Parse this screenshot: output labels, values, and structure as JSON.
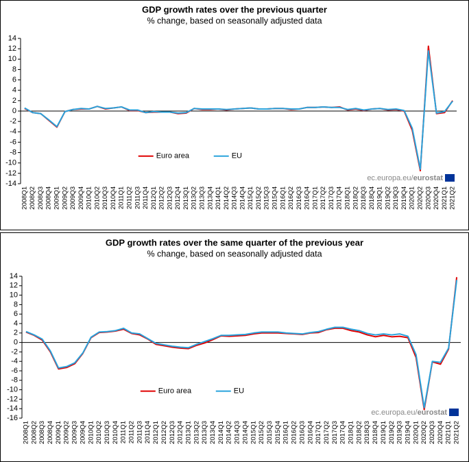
{
  "chart_data": [
    {
      "type": "line",
      "title": "GDP growth rates over the previous quarter",
      "subtitle": "% change, based on seasonally adjusted data",
      "source": [
        "ec.europa.eu/",
        "eurostat"
      ],
      "categories": [
        "2008Q1",
        "2008Q2",
        "2008Q3",
        "2008Q4",
        "2009Q1",
        "2009Q2",
        "2009Q3",
        "2009Q4",
        "2010Q1",
        "2010Q2",
        "2010Q3",
        "2010Q4",
        "2011Q1",
        "2011Q2",
        "2011Q3",
        "2011Q4",
        "2012Q1",
        "2012Q2",
        "2012Q3",
        "2012Q4",
        "2013Q1",
        "2013Q2",
        "2013Q3",
        "2013Q4",
        "2014Q1",
        "2014Q2",
        "2014Q3",
        "2014Q4",
        "2015Q1",
        "2015Q2",
        "2015Q3",
        "2015Q4",
        "2016Q1",
        "2016Q2",
        "2016Q3",
        "2016Q4",
        "2017Q1",
        "2017Q2",
        "2017Q3",
        "2017Q4",
        "2018Q1",
        "2018Q2",
        "2018Q3",
        "2018Q4",
        "2019Q1",
        "2019Q2",
        "2019Q3",
        "2019Q4",
        "2020Q1",
        "2020Q2",
        "2020Q3",
        "2020Q4",
        "2021Q1",
        "2021Q2"
      ],
      "series": [
        {
          "name": "Euro area",
          "color": "#e00000",
          "values": [
            0.5,
            -0.3,
            -0.5,
            -1.8,
            -3.1,
            -0.1,
            0.3,
            0.4,
            0.4,
            0.9,
            0.4,
            0.6,
            0.8,
            0.1,
            0.1,
            -0.3,
            -0.2,
            -0.2,
            -0.2,
            -0.5,
            -0.4,
            0.5,
            0.3,
            0.3,
            0.4,
            0.2,
            0.4,
            0.5,
            0.6,
            0.4,
            0.4,
            0.5,
            0.5,
            0.3,
            0.4,
            0.7,
            0.7,
            0.8,
            0.7,
            0.8,
            0.2,
            0.4,
            0.1,
            0.4,
            0.5,
            0.2,
            0.3,
            0.0,
            -3.7,
            -11.5,
            12.5,
            -0.5,
            -0.3,
            2.0
          ]
        },
        {
          "name": "EU",
          "color": "#29a3dc",
          "values": [
            0.6,
            -0.3,
            -0.5,
            -1.7,
            -3.0,
            -0.1,
            0.3,
            0.5,
            0.4,
            0.9,
            0.5,
            0.6,
            0.8,
            0.2,
            0.2,
            -0.3,
            -0.1,
            -0.2,
            -0.2,
            -0.4,
            -0.3,
            0.5,
            0.4,
            0.4,
            0.4,
            0.3,
            0.4,
            0.5,
            0.6,
            0.4,
            0.4,
            0.5,
            0.5,
            0.4,
            0.4,
            0.7,
            0.7,
            0.8,
            0.7,
            0.7,
            0.3,
            0.5,
            0.2,
            0.4,
            0.5,
            0.3,
            0.4,
            0.1,
            -3.3,
            -11.2,
            11.6,
            -0.4,
            -0.1,
            1.9
          ]
        }
      ],
      "ylim": [
        -14,
        14
      ],
      "yticks": [
        -14,
        -12,
        -10,
        -8,
        -6,
        -4,
        -2,
        0,
        2,
        4,
        6,
        8,
        10,
        12,
        14
      ],
      "legend": "lower center"
    },
    {
      "type": "line",
      "title": "GDP growth rates over the same quarter of the previous year",
      "subtitle": "% change, based on seasonally adjusted data",
      "source": [
        "ec.europa.eu/",
        "eurostat"
      ],
      "categories": [
        "2008Q1",
        "2008Q2",
        "2008Q3",
        "2008Q4",
        "2009Q1",
        "2009Q2",
        "2009Q3",
        "2009Q4",
        "2010Q1",
        "2010Q2",
        "2010Q3",
        "2010Q4",
        "2011Q1",
        "2011Q2",
        "2011Q3",
        "2011Q4",
        "2012Q1",
        "2012Q2",
        "2012Q3",
        "2012Q4",
        "2013Q1",
        "2013Q2",
        "2013Q3",
        "2013Q4",
        "2014Q1",
        "2014Q2",
        "2014Q3",
        "2014Q4",
        "2015Q1",
        "2015Q2",
        "2015Q3",
        "2015Q4",
        "2016Q1",
        "2016Q2",
        "2016Q3",
        "2016Q4",
        "2017Q1",
        "2017Q2",
        "2017Q3",
        "2017Q4",
        "2018Q1",
        "2018Q2",
        "2018Q3",
        "2018Q4",
        "2019Q1",
        "2019Q2",
        "2019Q3",
        "2019Q4",
        "2020Q1",
        "2020Q2",
        "2020Q3",
        "2020Q4",
        "2021Q1",
        "2021Q2"
      ],
      "series": [
        {
          "name": "Euro area",
          "color": "#e00000",
          "values": [
            2.2,
            1.5,
            0.5,
            -2.0,
            -5.6,
            -5.3,
            -4.5,
            -2.3,
            1.0,
            2.1,
            2.2,
            2.4,
            2.8,
            1.9,
            1.6,
            0.7,
            -0.4,
            -0.7,
            -1.0,
            -1.2,
            -1.3,
            -0.6,
            -0.1,
            0.6,
            1.4,
            1.3,
            1.4,
            1.5,
            1.8,
            2.0,
            2.0,
            2.0,
            1.9,
            1.8,
            1.7,
            2.0,
            2.1,
            2.7,
            3.0,
            3.0,
            2.5,
            2.2,
            1.6,
            1.2,
            1.5,
            1.2,
            1.3,
            1.0,
            -3.2,
            -14.2,
            -4.1,
            -4.6,
            -1.4,
            13.8
          ]
        },
        {
          "name": "EU",
          "color": "#29a3dc",
          "values": [
            2.3,
            1.6,
            0.7,
            -1.8,
            -5.4,
            -5.1,
            -4.3,
            -2.2,
            1.1,
            2.2,
            2.3,
            2.5,
            3.0,
            2.0,
            1.8,
            0.8,
            -0.2,
            -0.5,
            -0.8,
            -1.0,
            -1.1,
            -0.4,
            0.2,
            0.8,
            1.5,
            1.5,
            1.6,
            1.7,
            2.0,
            2.2,
            2.2,
            2.2,
            2.0,
            1.9,
            1.8,
            2.1,
            2.3,
            2.8,
            3.2,
            3.2,
            2.8,
            2.5,
            1.9,
            1.6,
            1.8,
            1.6,
            1.8,
            1.3,
            -2.6,
            -13.8,
            -4.0,
            -4.2,
            -1.2,
            13.2
          ]
        }
      ],
      "ylim": [
        -16,
        14
      ],
      "yticks": [
        -16,
        -14,
        -12,
        -10,
        -8,
        -6,
        -4,
        -2,
        0,
        2,
        4,
        6,
        8,
        10,
        12,
        14
      ],
      "legend": "lower center"
    }
  ]
}
